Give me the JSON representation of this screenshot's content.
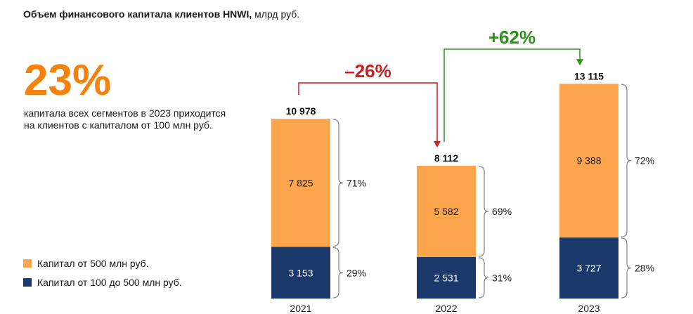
{
  "title": {
    "bold": "Объем финансового капитала клиентов HNWI,",
    "rest": " млрд руб."
  },
  "headline": {
    "value": "23%",
    "text": "капитала всех сегментов в 2023 приходится на клиентов с капиталом от 100 млн руб."
  },
  "colors": {
    "top": "#fca54c",
    "bottom": "#1b3a6b",
    "accent": "#f5820d",
    "red": "#cc1f1f",
    "green": "#2f8f1f"
  },
  "changes": [
    {
      "label": "–26%",
      "from": "2021",
      "to": "2022",
      "color": "red"
    },
    {
      "label": "+62%",
      "from": "2022",
      "to": "2023",
      "color": "green"
    }
  ],
  "chart_data": {
    "type": "bar",
    "stacked": true,
    "categories": [
      "2021",
      "2022",
      "2023"
    ],
    "series": [
      {
        "name": "Капитал от 100 до 500 млн руб.",
        "values": [
          3153,
          2531,
          3727
        ],
        "labels": [
          "3 153",
          "2 531",
          "3 727"
        ],
        "shares": [
          "29%",
          "31%",
          "28%"
        ]
      },
      {
        "name": "Капитал от 500 млн руб.",
        "values": [
          7825,
          5582,
          9388
        ],
        "labels": [
          "7 825",
          "5 582",
          "9 388"
        ],
        "shares": [
          "71%",
          "69%",
          "72%"
        ]
      }
    ],
    "totals": [
      10978,
      8112,
      13115
    ],
    "total_labels": [
      "10 978",
      "8 112",
      "13 115"
    ],
    "unit": "млрд руб."
  }
}
